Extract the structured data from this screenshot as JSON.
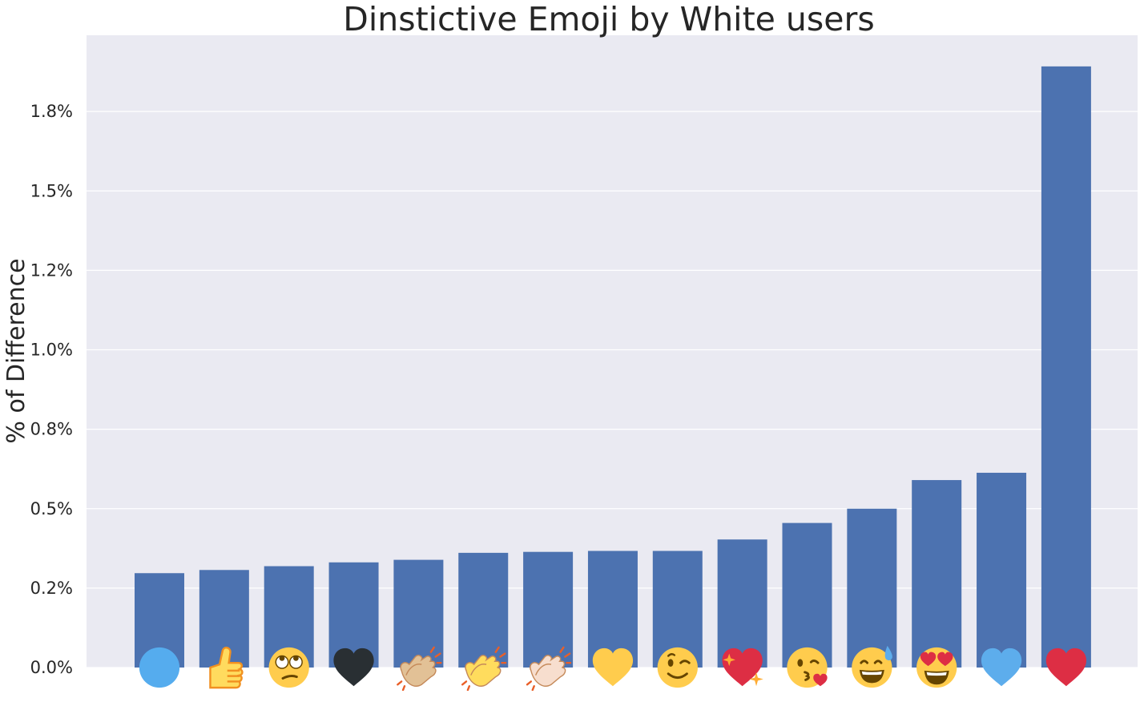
{
  "chart_data": {
    "type": "bar",
    "title": "Dinstictive Emoji by White users",
    "xlabel": "",
    "ylabel": "% of Difference",
    "ylim": [
      0.0,
      0.0199
    ],
    "yticks": [
      0.0,
      0.0025,
      0.005,
      0.0075,
      0.01,
      0.0125,
      0.015,
      0.0175
    ],
    "ytick_labels": [
      "0.0%",
      "0.2%",
      "0.5%",
      "0.8%",
      "1.0%",
      "1.2%",
      "1.5%",
      "1.8%"
    ],
    "grid": true,
    "categories": [
      "blue-circle",
      "thumbs-up",
      "face-with-rolling-eyes",
      "black-heart",
      "clapping-hands-medium-light-skin",
      "clapping-hands",
      "clapping-hands-light-skin",
      "yellow-heart",
      "winking-face",
      "sparkling-heart",
      "face-blowing-a-kiss",
      "grinning-face-with-sweat",
      "smiling-face-with-heart-eyes",
      "blue-heart",
      "red-heart"
    ],
    "values": [
      0.00297,
      0.00307,
      0.00319,
      0.00331,
      0.00339,
      0.00361,
      0.00364,
      0.00367,
      0.00367,
      0.00403,
      0.00455,
      0.005,
      0.0059,
      0.00613,
      0.01892
    ],
    "bar_color": "#4c72b0",
    "background_color": "#eaeaf2"
  }
}
